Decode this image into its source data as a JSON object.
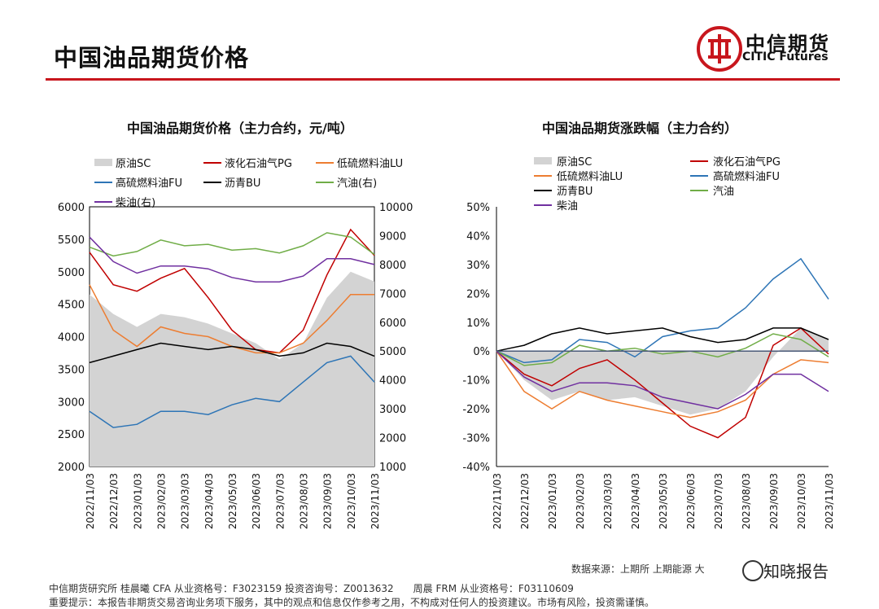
{
  "header": {
    "title": "中国油品期货价格",
    "logo_cn": "中信期货",
    "logo_en": "CITIC Futures"
  },
  "footer": {
    "source": "数据来源：上期所 上期能源 大",
    "watermark": "知晓报告",
    "line1": "中信期货研究所 桂晨曦 CFA 从业资格号：F3023159 投资咨询号：Z0013632　　周晨 FRM 从业资格号：F03110609",
    "line2": "重要提示：本报告非期货交易咨询业务项下服务，其中的观点和信息仅作参考之用，不构成对任何人的投资建议。市场有风险，投资需谨慎。"
  },
  "colors": {
    "accent": "#c8161d",
    "crude": "#d3d3d3",
    "pg": "#c00000",
    "lu": "#ed7d31",
    "fu": "#2e75b6",
    "bu": "#000000",
    "gasoline": "#70ad47",
    "diesel": "#7030a0"
  },
  "chart_data": [
    {
      "type": "line",
      "title": "中国油品期货价格（主力合约，元/吨）",
      "categories": [
        "2022/11/03",
        "2022/12/03",
        "2023/01/03",
        "2023/02/03",
        "2023/03/03",
        "2023/04/03",
        "2023/05/03",
        "2023/06/03",
        "2023/07/03",
        "2023/08/03",
        "2023/09/03",
        "2023/10/03",
        "2023/11/03"
      ],
      "y_left": {
        "min": 2000,
        "max": 6000,
        "ticks": [
          2000,
          2500,
          3000,
          3500,
          4000,
          4500,
          5000,
          5500,
          6000
        ]
      },
      "y_right": {
        "min": 1000,
        "max": 10000,
        "ticks": [
          1000,
          2000,
          3000,
          4000,
          5000,
          6000,
          7000,
          8000,
          9000,
          10000
        ]
      },
      "legend": [
        "原油SC",
        "液化石油气PG",
        "低硫燃料油LU",
        "高硫燃料油FU",
        "沥青BU",
        "汽油(右)",
        "柴油(右)"
      ],
      "series": [
        {
          "name": "原油SC",
          "axis": "left",
          "kind": "area",
          "color": "#d3d3d3",
          "values": [
            4650,
            4350,
            4150,
            4350,
            4300,
            4200,
            4050,
            3900,
            3650,
            3900,
            4600,
            5000,
            4850
          ]
        },
        {
          "name": "液化石油气PG",
          "axis": "left",
          "kind": "line",
          "color": "#c00000",
          "values": [
            5300,
            4800,
            4700,
            4900,
            5050,
            4600,
            4100,
            3800,
            3750,
            4100,
            4950,
            5650,
            5250
          ]
        },
        {
          "name": "低硫燃料油LU",
          "axis": "left",
          "kind": "line",
          "color": "#ed7d31",
          "values": [
            4800,
            4100,
            3850,
            4150,
            4050,
            4000,
            3850,
            3750,
            3750,
            3900,
            4250,
            4650,
            4650
          ]
        },
        {
          "name": "高硫燃料油FU",
          "axis": "left",
          "kind": "line",
          "color": "#2e75b6",
          "values": [
            2850,
            2600,
            2650,
            2850,
            2850,
            2800,
            2950,
            3050,
            3000,
            3300,
            3600,
            3700,
            3300
          ]
        },
        {
          "name": "沥青BU",
          "axis": "left",
          "kind": "line",
          "color": "#000000",
          "values": [
            3600,
            3700,
            3800,
            3900,
            3850,
            3800,
            3850,
            3800,
            3700,
            3750,
            3900,
            3850,
            3700
          ]
        },
        {
          "name": "汽油(右)",
          "axis": "right",
          "kind": "line",
          "color": "#70ad47",
          "values": [
            8600,
            8300,
            8450,
            8850,
            8650,
            8700,
            8500,
            8550,
            8400,
            8650,
            9100,
            8950,
            8350
          ]
        },
        {
          "name": "柴油(右)",
          "axis": "right",
          "kind": "line",
          "color": "#7030a0",
          "values": [
            8950,
            8100,
            7700,
            7950,
            7950,
            7850,
            7550,
            7400,
            7400,
            7600,
            8200,
            8200,
            8000
          ]
        }
      ]
    },
    {
      "type": "line",
      "title": "中国油品期货涨跌幅（主力合约）",
      "categories": [
        "2022/11/03",
        "2022/12/03",
        "2023/01/03",
        "2023/02/03",
        "2023/03/03",
        "2023/04/03",
        "2023/05/03",
        "2023/06/03",
        "2023/07/03",
        "2023/08/03",
        "2023/09/03",
        "2023/10/03",
        "2023/11/03"
      ],
      "y": {
        "min": -40,
        "max": 50,
        "ticks": [
          "50%",
          "40%",
          "30%",
          "20%",
          "10%",
          "0%",
          "-10%",
          "-20%",
          "-30%",
          "-40%"
        ]
      },
      "legend": [
        "原油SC",
        "液化石油气PG",
        "低硫燃料油LU",
        "高硫燃料油FU",
        "沥青BU",
        "汽油",
        "柴油"
      ],
      "series": [
        {
          "name": "原油SC",
          "kind": "area",
          "color": "#d3d3d3",
          "values": [
            0,
            -10,
            -17,
            -14,
            -17,
            -16,
            -19,
            -22,
            -20,
            -14,
            -2,
            8,
            4
          ]
        },
        {
          "name": "液化石油气PG",
          "kind": "line",
          "color": "#c00000",
          "values": [
            0,
            -8,
            -12,
            -6,
            -3,
            -10,
            -18,
            -26,
            -30,
            -23,
            2,
            8,
            -1
          ]
        },
        {
          "name": "低硫燃料油LU",
          "kind": "line",
          "color": "#ed7d31",
          "values": [
            0,
            -14,
            -20,
            -14,
            -17,
            -19,
            -21,
            -23,
            -21,
            -17,
            -8,
            -3,
            -4
          ]
        },
        {
          "name": "高硫燃料油FU",
          "kind": "line",
          "color": "#2e75b6",
          "values": [
            0,
            -4,
            -3,
            4,
            3,
            -2,
            5,
            7,
            8,
            15,
            25,
            32,
            18
          ]
        },
        {
          "name": "沥青BU",
          "kind": "line",
          "color": "#000000",
          "values": [
            0,
            2,
            6,
            8,
            6,
            7,
            8,
            5,
            3,
            4,
            8,
            8,
            4
          ]
        },
        {
          "name": "汽油",
          "kind": "line",
          "color": "#70ad47",
          "values": [
            0,
            -5,
            -4,
            2,
            0,
            1,
            -1,
            0,
            -2,
            1,
            6,
            4,
            -2
          ]
        },
        {
          "name": "柴油",
          "kind": "line",
          "color": "#7030a0",
          "values": [
            0,
            -9,
            -14,
            -11,
            -11,
            -12,
            -16,
            -18,
            -20,
            -15,
            -8,
            -8,
            -14
          ]
        }
      ]
    }
  ]
}
